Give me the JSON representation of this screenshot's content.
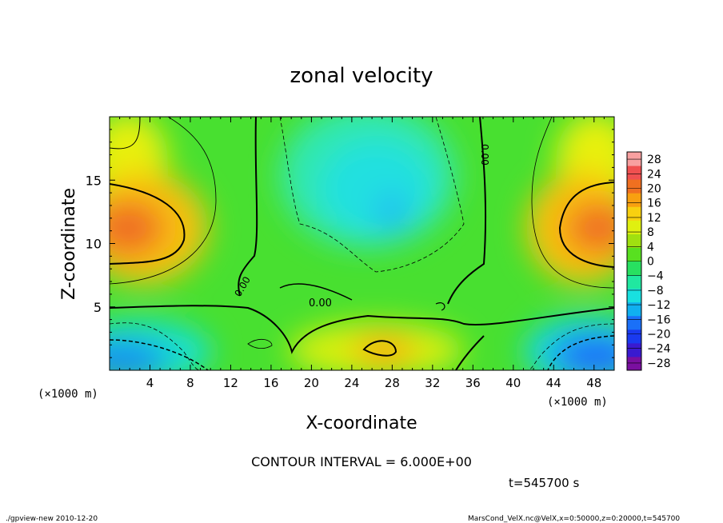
{
  "chart_data": {
    "type": "heatmap",
    "title": "zonal velocity",
    "xlabel": "X-coordinate",
    "ylabel": "Z-coordinate",
    "x_unit_left": "(×1000 m)",
    "x_unit_right": "(×1000 m)",
    "xlim": [
      0,
      50
    ],
    "ylim": [
      0,
      20
    ],
    "x_ticks": [
      4,
      8,
      12,
      16,
      20,
      24,
      28,
      32,
      36,
      40,
      44,
      48
    ],
    "y_ticks": [
      5,
      10,
      15
    ],
    "colorbar_ticks": [
      28,
      24,
      20,
      16,
      12,
      8,
      4,
      0,
      -4,
      -8,
      -12,
      -16,
      -20,
      -24,
      -28
    ],
    "colorbar_range": [
      -30,
      30
    ],
    "contour_labels": [
      "0.00",
      "0.00",
      "0.00"
    ],
    "contour_interval_text": "CONTOUR INTERVAL = 6.000E+00",
    "time_text": "t=545700 s",
    "features": [
      {
        "x": 3,
        "z": 11,
        "value": 19
      },
      {
        "x": 48,
        "z": 11.5,
        "value": 19
      },
      {
        "x": 27,
        "z": 1.5,
        "value": 12
      },
      {
        "x": 27,
        "z": 12,
        "value": -12
      },
      {
        "x": 2,
        "z": 1,
        "value": -15
      },
      {
        "x": 49,
        "z": 1.5,
        "value": -17
      }
    ]
  },
  "footer": {
    "left": "./gpview-new  2010-12-20",
    "right": "MarsCond_VelX.nc@VelX,x=0:50000,z=0:20000,t=545700"
  },
  "colors": {
    "scale": [
      "#7a0fa0",
      "#3a1ad0",
      "#1a3af0",
      "#1a70f8",
      "#10b0f0",
      "#18e0e0",
      "#20e8a0",
      "#28e060",
      "#58e020",
      "#a0e010",
      "#e0f010",
      "#f8d010",
      "#f8a010",
      "#f07020",
      "#f05050",
      "#f8a0a0"
    ]
  }
}
